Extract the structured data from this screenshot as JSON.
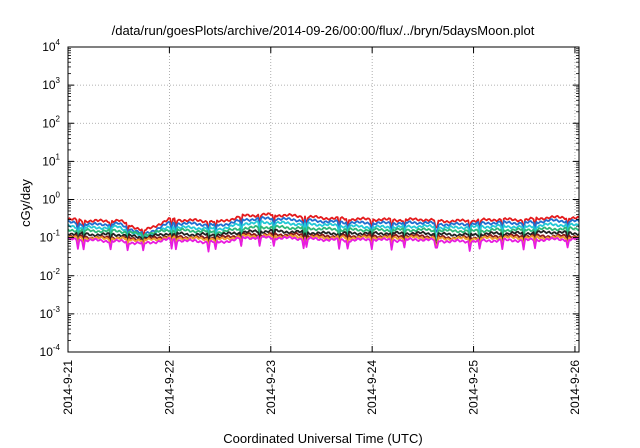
{
  "chart_data": {
    "type": "line",
    "title": "/data/run/goesPlots/archive/2014-09-26/00:00/flux/../bryn/5daysMoon.plot",
    "xlabel": "Coordinated Universal Time (UTC)",
    "ylabel": "cGy/day",
    "yscale": "log",
    "ylim": [
      0.0001,
      10000
    ],
    "xlim": [
      "2014-09-21",
      "2014-09-26 01:00"
    ],
    "grid": true,
    "legend": "none",
    "x_tick_labels": [
      "2014-9-21",
      "2014-9-22",
      "2014-9-23",
      "2014-9-24",
      "2014-9-25",
      "2014-9-26"
    ],
    "y_tick_labels": [
      {
        "base": "10",
        "exp": "-4"
      },
      {
        "base": "10",
        "exp": "-3"
      },
      {
        "base": "10",
        "exp": "-2"
      },
      {
        "base": "10",
        "exp": "-1"
      },
      {
        "base": "10",
        "exp": "0"
      },
      {
        "base": "10",
        "exp": "1"
      },
      {
        "base": "10",
        "exp": "2"
      },
      {
        "base": "10",
        "exp": "3"
      },
      {
        "base": "10",
        "exp": "4"
      }
    ],
    "series_x_days": [
      0.0,
      0.25,
      0.5,
      0.75,
      1.0,
      1.25,
      1.5,
      1.75,
      2.0,
      2.25,
      2.5,
      2.75,
      3.0,
      3.25,
      3.5,
      3.75,
      4.0,
      4.25,
      4.5,
      4.75,
      5.0,
      5.04
    ],
    "series": [
      {
        "color": "#e41a1c",
        "values": [
          0.3,
          0.27,
          0.28,
          0.15,
          0.3,
          0.28,
          0.26,
          0.38,
          0.4,
          0.37,
          0.33,
          0.31,
          0.3,
          0.29,
          0.3,
          0.27,
          0.28,
          0.3,
          0.29,
          0.34,
          0.33,
          0.32
        ]
      },
      {
        "color": "#1f6fd0",
        "values": [
          0.25,
          0.22,
          0.23,
          0.12,
          0.24,
          0.23,
          0.21,
          0.3,
          0.32,
          0.29,
          0.27,
          0.25,
          0.24,
          0.24,
          0.25,
          0.22,
          0.23,
          0.25,
          0.24,
          0.28,
          0.27,
          0.26
        ]
      },
      {
        "color": "#23c8d6",
        "values": [
          0.2,
          0.18,
          0.19,
          0.1,
          0.19,
          0.18,
          0.17,
          0.24,
          0.25,
          0.23,
          0.22,
          0.2,
          0.19,
          0.19,
          0.2,
          0.18,
          0.19,
          0.2,
          0.19,
          0.22,
          0.21,
          0.21
        ]
      },
      {
        "color": "#2db87a",
        "values": [
          0.16,
          0.15,
          0.15,
          0.12,
          0.16,
          0.15,
          0.14,
          0.18,
          0.19,
          0.18,
          0.17,
          0.16,
          0.16,
          0.16,
          0.16,
          0.15,
          0.15,
          0.16,
          0.16,
          0.17,
          0.17,
          0.17
        ]
      },
      {
        "color": "#222222",
        "values": [
          0.13,
          0.12,
          0.12,
          0.1,
          0.13,
          0.12,
          0.12,
          0.14,
          0.15,
          0.14,
          0.13,
          0.13,
          0.13,
          0.13,
          0.13,
          0.12,
          0.12,
          0.13,
          0.13,
          0.14,
          0.13,
          0.13
        ]
      },
      {
        "color": "#8b1a1a",
        "values": [
          0.11,
          0.1,
          0.1,
          0.09,
          0.11,
          0.1,
          0.1,
          0.12,
          0.12,
          0.12,
          0.11,
          0.11,
          0.11,
          0.11,
          0.11,
          0.1,
          0.1,
          0.11,
          0.11,
          0.11,
          0.11,
          0.11
        ]
      },
      {
        "color": "#f0a030",
        "values": [
          0.1,
          0.095,
          0.095,
          0.085,
          0.1,
          0.095,
          0.09,
          0.11,
          0.11,
          0.105,
          0.1,
          0.1,
          0.1,
          0.1,
          0.1,
          0.095,
          0.095,
          0.1,
          0.1,
          0.1,
          0.1,
          0.1
        ]
      },
      {
        "color": "#e81ce0",
        "values": [
          0.09,
          0.085,
          0.08,
          0.07,
          0.09,
          0.08,
          0.075,
          0.1,
          0.1,
          0.095,
          0.09,
          0.085,
          0.09,
          0.085,
          0.09,
          0.08,
          0.08,
          0.085,
          0.085,
          0.09,
          0.09,
          0.09
        ]
      }
    ]
  }
}
